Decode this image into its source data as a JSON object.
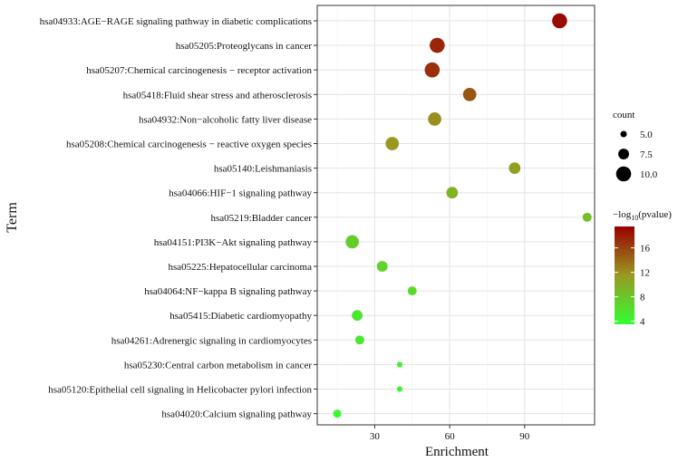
{
  "chart_data": {
    "type": "scatter",
    "xlabel": "Enrichment",
    "ylabel": "Term",
    "xlim": [
      7,
      118
    ],
    "xticks": [
      30,
      60,
      90
    ],
    "xtick_labels": [
      "30",
      "60",
      "90"
    ],
    "grid": true,
    "color_scale": {
      "title": "−log10(pvalue)",
      "title_prefix": "−log",
      "title_sub": "10",
      "title_suffix": "(pvalue)",
      "min": 3.5,
      "max": 19.5,
      "ticks": [
        4,
        8,
        12,
        16
      ],
      "low_color": "#33ff33",
      "mid_color": "#999922",
      "high_color": "#990000"
    },
    "size_legend": {
      "title": "count",
      "values": [
        5.0,
        7.5,
        10.0
      ],
      "labels": [
        "5.0",
        "7.5",
        "10.0"
      ]
    },
    "points": [
      {
        "term": "hsa04933:AGE−RAGE signaling pathway in diabetic complications",
        "enrichment": 104,
        "count": 10,
        "neglog10p": 19.0
      },
      {
        "term": "hsa05205:Proteoglycans in cancer",
        "enrichment": 55,
        "count": 10,
        "neglog10p": 17.5
      },
      {
        "term": "hsa05207:Chemical carcinogenesis − receptor activation",
        "enrichment": 53,
        "count": 10,
        "neglog10p": 17.0
      },
      {
        "term": "hsa05418:Fluid shear stress and atherosclerosis",
        "enrichment": 68,
        "count": 9,
        "neglog10p": 15.0
      },
      {
        "term": "hsa04932:Non−alcoholic fatty liver disease",
        "enrichment": 54,
        "count": 9,
        "neglog10p": 12.0
      },
      {
        "term": "hsa05208:Chemical carcinogenesis − reactive oxygen species",
        "enrichment": 37,
        "count": 9,
        "neglog10p": 11.5
      },
      {
        "term": "hsa05140:Leishmaniasis",
        "enrichment": 86,
        "count": 8,
        "neglog10p": 11.0
      },
      {
        "term": "hsa04066:HIF−1 signaling pathway",
        "enrichment": 61,
        "count": 8,
        "neglog10p": 9.5
      },
      {
        "term": "hsa05219:Bladder cancer",
        "enrichment": 115,
        "count": 6.5,
        "neglog10p": 8.5
      },
      {
        "term": "hsa04151:PI3K−Akt signaling pathway",
        "enrichment": 21,
        "count": 9,
        "neglog10p": 7.5
      },
      {
        "term": "hsa05225:Hepatocellular carcinoma",
        "enrichment": 33,
        "count": 7.5,
        "neglog10p": 7.0
      },
      {
        "term": "hsa04064:NF−kappa B signaling pathway",
        "enrichment": 45,
        "count": 6.5,
        "neglog10p": 6.5
      },
      {
        "term": "hsa05415:Diabetic cardiomyopathy",
        "enrichment": 23,
        "count": 7.5,
        "neglog10p": 5.5
      },
      {
        "term": "hsa04261:Adrenergic signaling in cardiomyocytes",
        "enrichment": 24,
        "count": 6.5,
        "neglog10p": 5.5
      },
      {
        "term": "hsa05230:Central carbon metabolism in cancer",
        "enrichment": 40,
        "count": 4.5,
        "neglog10p": 4.5
      },
      {
        "term": "hsa05120:Epithelial cell signaling in Helicobacter pylori infection",
        "enrichment": 40,
        "count": 4.5,
        "neglog10p": 4.5
      },
      {
        "term": "hsa04020:Calcium signaling pathway",
        "enrichment": 15,
        "count": 6,
        "neglog10p": 4.0
      }
    ]
  }
}
